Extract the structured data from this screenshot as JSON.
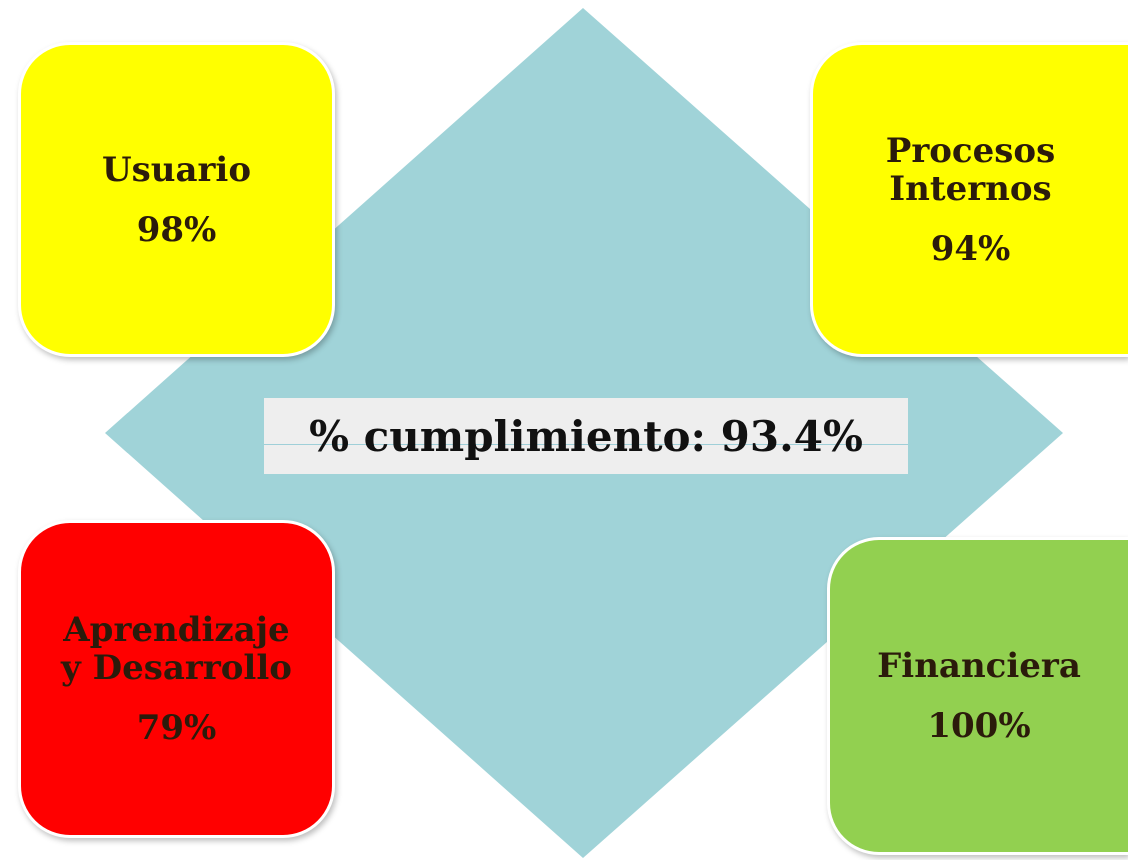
{
  "center": {
    "label": "% cumplimiento: 93.4%"
  },
  "nodes": [
    {
      "label": [
        "Usuario"
      ],
      "value": "98%"
    },
    {
      "label": [
        "Procesos",
        "Internos"
      ],
      "value": "94%"
    },
    {
      "label": [
        "Aprendizaje",
        "y Desarrollo"
      ],
      "value": "79%"
    },
    {
      "label": [
        "Financiera"
      ],
      "value": "100%"
    }
  ]
}
